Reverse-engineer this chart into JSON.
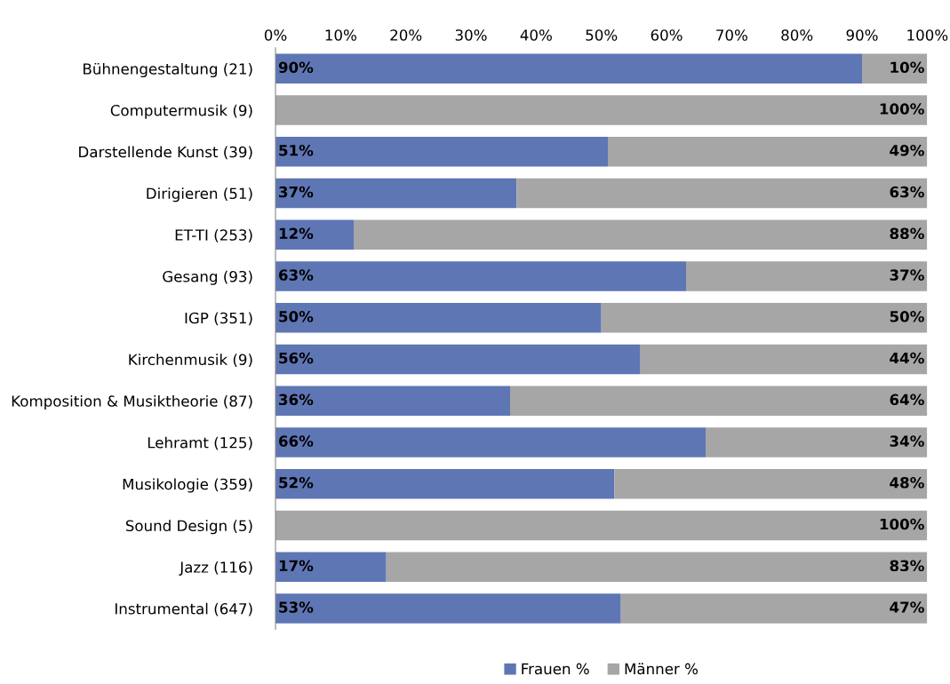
{
  "chart_data": {
    "type": "bar",
    "orientation": "horizontal",
    "stacked": true,
    "categories": [
      "Bühnengestaltung (21)",
      "Computermusik (9)",
      "Darstellende Kunst (39)",
      "Dirigieren (51)",
      "ET-TI (253)",
      "Gesang (93)",
      "IGP (351)",
      "Kirchenmusik (9)",
      "Komposition & Musiktheorie (87)",
      "Lehramt (125)",
      "Musikologie (359)",
      "Sound Design (5)",
      "Jazz (116)",
      "Instrumental (647)"
    ],
    "series": [
      {
        "name": "Frauen %",
        "color": "#5f76b5",
        "values": [
          90,
          0,
          51,
          37,
          12,
          63,
          50,
          56,
          36,
          66,
          52,
          0,
          17,
          53
        ],
        "value_labels": [
          "90%",
          null,
          "51%",
          "37%",
          "12%",
          "63%",
          "50%",
          "56%",
          "36%",
          "66%",
          "52%",
          null,
          "17%",
          "53%"
        ]
      },
      {
        "name": "Männer %",
        "color": "#a6a6a6",
        "values": [
          10,
          100,
          49,
          63,
          88,
          37,
          50,
          44,
          64,
          34,
          48,
          100,
          83,
          47
        ],
        "value_labels": [
          "10%",
          "100%",
          "49%",
          "63%",
          "88%",
          "37%",
          "50%",
          "44%",
          "64%",
          "34%",
          "48%",
          "100%",
          "83%",
          "47%"
        ]
      }
    ],
    "xlim": [
      0,
      100
    ],
    "xticks": [
      {
        "value": 0,
        "label": "0%"
      },
      {
        "value": 10,
        "label": "10%"
      },
      {
        "value": 20,
        "label": "20%"
      },
      {
        "value": 30,
        "label": "30%"
      },
      {
        "value": 40,
        "label": "40%"
      },
      {
        "value": 50,
        "label": "50%"
      },
      {
        "value": 60,
        "label": "60%"
      },
      {
        "value": 70,
        "label": "70%"
      },
      {
        "value": 80,
        "label": "80%"
      },
      {
        "value": 90,
        "label": "90%"
      },
      {
        "value": 100,
        "label": "100%"
      }
    ],
    "grid": false,
    "legend": "bottom"
  }
}
